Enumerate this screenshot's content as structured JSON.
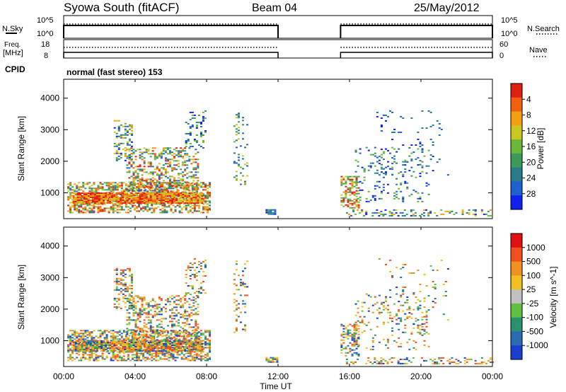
{
  "header": {
    "title": "Syowa South (fitACF)",
    "beam": "Beam 04",
    "date": "25/May/2012"
  },
  "time_axis": {
    "label": "Time UT",
    "ticks": [
      "00:00",
      "04:00",
      "08:00",
      "12:00",
      "16:00",
      "20:00",
      "00:00"
    ],
    "tick_hours": [
      0,
      4,
      8,
      12,
      16,
      20,
      24
    ]
  },
  "nsky_panel": {
    "left_label": "N.Sky",
    "left_ticks": [
      "10^5",
      "10^0"
    ],
    "right_label": "N.Search",
    "right_ticks": [
      "10^5",
      "10^0"
    ]
  },
  "freq_panel": {
    "left_label_1": "Freq.",
    "left_label_2": "[MHz]",
    "left_ticks": [
      "18",
      "8"
    ],
    "right_label": "Nave",
    "right_ticks": [
      "60",
      "0"
    ]
  },
  "cpid": {
    "label": "CPID",
    "value": "normal (fast stereo) 153"
  },
  "chart_data": [
    {
      "type": "heatmap",
      "title": "",
      "xlabel": "Time UT",
      "ylabel": "Slant Range [km]",
      "xlim": [
        0,
        24
      ],
      "ylim": [
        180,
        4600
      ],
      "y_ticks": [
        1000,
        2000,
        3000,
        4000
      ],
      "colorbar": {
        "label": "Power [dB]",
        "ticks": [
          4,
          8,
          12,
          16,
          20,
          24,
          28
        ],
        "range": [
          0,
          32
        ],
        "colors": [
          "#1020f0",
          "#1f5fd0",
          "#2a7a8a",
          "#3c9a5a",
          "#6ab83a",
          "#c8c820",
          "#f0a010",
          "#f06010",
          "#e02010"
        ]
      },
      "data_gaps_hours": [
        [
          12,
          15.5
        ]
      ]
    },
    {
      "type": "heatmap",
      "title": "",
      "xlabel": "Time UT",
      "ylabel": "Slant Range [km]",
      "xlim": [
        0,
        24
      ],
      "ylim": [
        180,
        4600
      ],
      "y_ticks": [
        1000,
        2000,
        3000,
        4000
      ],
      "colorbar": {
        "label": "Velocity [m s^-1]",
        "ticks": [
          "1000",
          "500",
          "100",
          "25",
          "-25",
          "-100",
          "-500",
          "-1000"
        ],
        "colors": [
          "#1a3fd0",
          "#2a6ab0",
          "#2a9070",
          "#60c040",
          "#c0c0c0",
          "#f0c020",
          "#f09020",
          "#f05020",
          "#e01010"
        ]
      },
      "data_gaps_hours": [
        [
          12,
          15.5
        ]
      ]
    }
  ]
}
